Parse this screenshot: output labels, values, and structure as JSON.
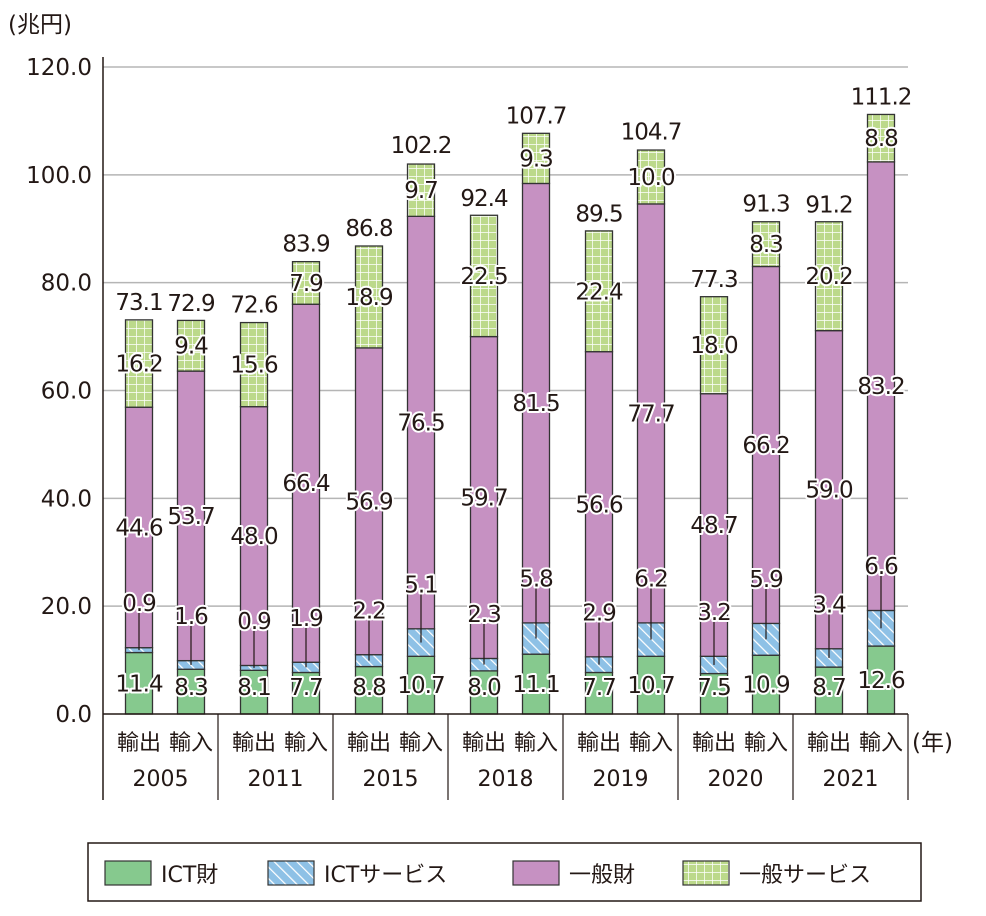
{
  "chart_data": {
    "type": "bar",
    "stacked": true,
    "unit_label": "(兆円)",
    "x_unit_label": "(年)",
    "ylim": [
      0,
      120
    ],
    "yticks": [
      "0.0",
      "20.0",
      "40.0",
      "60.0",
      "80.0",
      "100.0",
      "120.0"
    ],
    "grid": true,
    "legend_position": "bottom",
    "years": [
      "2005",
      "2011",
      "2015",
      "2018",
      "2019",
      "2020",
      "2021"
    ],
    "sub_categories": [
      "輸出",
      "輸入"
    ],
    "series": [
      {
        "name": "ICT財",
        "color": "#86c98e",
        "pattern": "solid",
        "values": [
          [
            11.4,
            8.3
          ],
          [
            8.1,
            7.7
          ],
          [
            8.8,
            10.7
          ],
          [
            8.0,
            11.1
          ],
          [
            7.7,
            10.7
          ],
          [
            7.5,
            10.9
          ],
          [
            8.7,
            12.6
          ]
        ]
      },
      {
        "name": "ICTサービス",
        "color": "#8ec1e6",
        "pattern": "diagonal-hatch",
        "values": [
          [
            0.9,
            1.6
          ],
          [
            0.9,
            1.9
          ],
          [
            2.2,
            5.1
          ],
          [
            2.3,
            5.8
          ],
          [
            2.9,
            6.2
          ],
          [
            3.2,
            5.9
          ],
          [
            3.4,
            6.6
          ]
        ]
      },
      {
        "name": "一般財",
        "color": "#c691c2",
        "pattern": "solid",
        "values": [
          [
            44.6,
            53.7
          ],
          [
            48.0,
            66.4
          ],
          [
            56.9,
            76.5
          ],
          [
            59.7,
            81.5
          ],
          [
            56.6,
            77.7
          ],
          [
            48.7,
            66.2
          ],
          [
            59.0,
            83.2
          ]
        ]
      },
      {
        "name": "一般サービス",
        "color": "#bcd98b",
        "pattern": "grid",
        "values": [
          [
            16.2,
            9.4
          ],
          [
            15.6,
            7.9
          ],
          [
            18.9,
            9.7
          ],
          [
            22.5,
            9.3
          ],
          [
            22.4,
            10.0
          ],
          [
            18.0,
            8.3
          ],
          [
            20.2,
            8.8
          ]
        ]
      }
    ],
    "totals": [
      [
        73.1,
        72.9
      ],
      [
        72.6,
        83.9
      ],
      [
        86.8,
        102.2
      ],
      [
        92.4,
        107.7
      ],
      [
        89.5,
        104.7
      ],
      [
        77.3,
        91.3
      ],
      [
        91.2,
        111.2
      ]
    ]
  }
}
